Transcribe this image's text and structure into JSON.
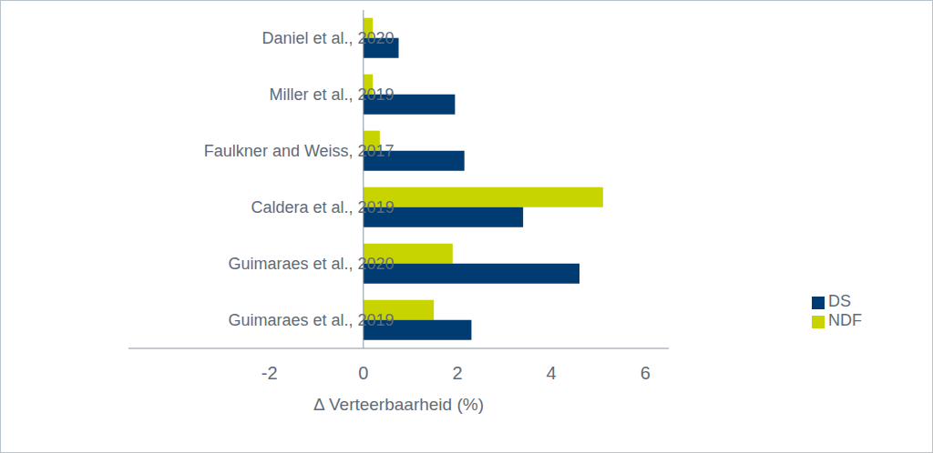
{
  "chart_data": {
    "type": "bar",
    "orientation": "horizontal",
    "x_label": "Δ Verteerbaarheid (%)",
    "categories": [
      "Daniel et al., 2020",
      "Miller et al., 2019",
      "Faulkner and Weiss, 2017",
      "Caldera et al., 2019",
      "Guimaraes et al., 2020",
      "Guimaraes et al., 2019"
    ],
    "series": [
      {
        "name": "NDF",
        "color": "#c8d400",
        "values": [
          0.2,
          0.2,
          0.35,
          5.1,
          1.9,
          1.5
        ]
      },
      {
        "name": "DS",
        "color": "#003b71",
        "values": [
          0.75,
          1.95,
          2.15,
          3.4,
          4.6,
          2.3
        ]
      }
    ],
    "xlim": [
      -5,
      6.5
    ],
    "xticks": [
      -2,
      0,
      2,
      4,
      6
    ],
    "grid": false,
    "legend": "right"
  }
}
